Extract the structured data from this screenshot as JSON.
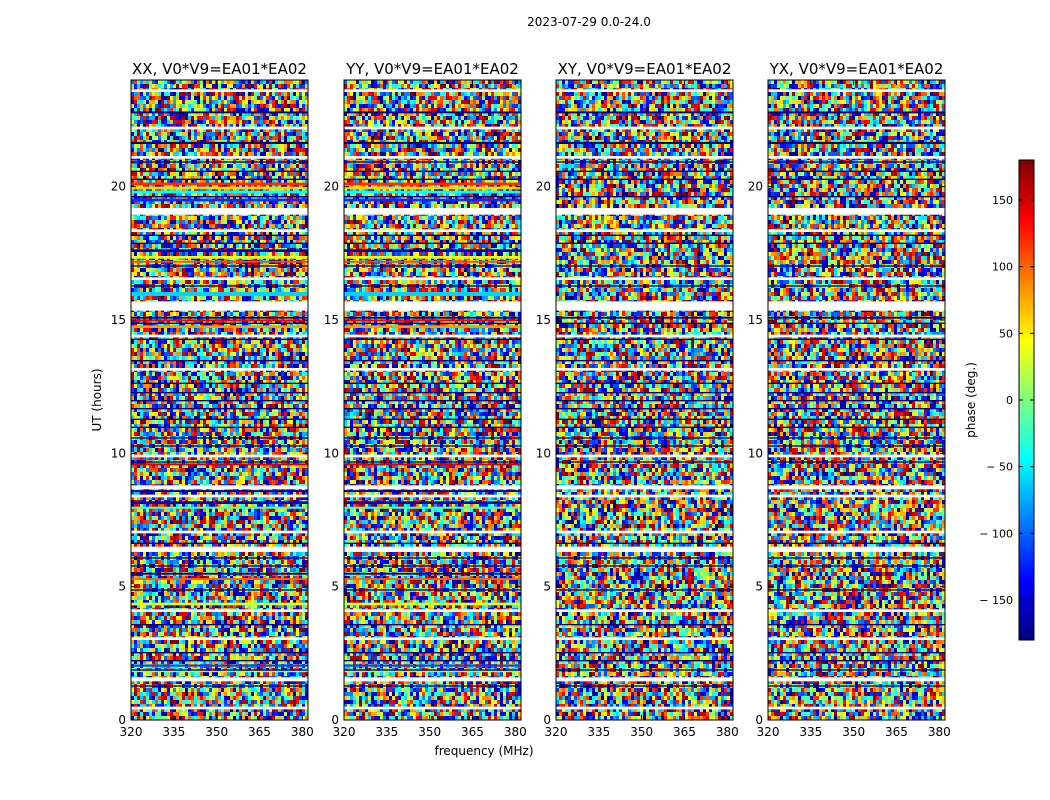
{
  "suptitle": "2023-07-29 0.0-24.0",
  "chart_data": {
    "type": "heatmap",
    "title": "2023-07-29 0.0-24.0",
    "xlabel": "frequency (MHz)",
    "ylabel": "UT (hours)",
    "xlim": [
      320,
      382
    ],
    "ylim": [
      0,
      24
    ],
    "xticks": [
      320,
      335,
      350,
      365,
      380
    ],
    "yticks": [
      0,
      5,
      10,
      15,
      20
    ],
    "grid": false,
    "panels": [
      {
        "title": "XX, V0*V9=EA01*EA02",
        "pol": "XX",
        "coherent": true
      },
      {
        "title": "YY, V0*V9=EA01*EA02",
        "pol": "YY",
        "coherent": true
      },
      {
        "title": "XY, V0*V9=EA01*EA02",
        "pol": "XY",
        "coherent": false
      },
      {
        "title": "YX, V0*V9=EA01*EA02",
        "pol": "YX",
        "coherent": false
      }
    ],
    "flagged_hours": [
      [
        23.55,
        23.65
      ],
      [
        22.15,
        22.25
      ],
      [
        21.05,
        21.15
      ],
      [
        18.95,
        19.2
      ],
      [
        18.3,
        18.4
      ],
      [
        16.5,
        16.6
      ],
      [
        15.35,
        15.7
      ],
      [
        14.35,
        14.45
      ],
      [
        13.1,
        13.2
      ],
      [
        9.85,
        9.95
      ],
      [
        8.35,
        8.45
      ],
      [
        8.65,
        8.8
      ],
      [
        7.0,
        7.1
      ],
      [
        6.3,
        6.5
      ],
      [
        4.05,
        4.15
      ],
      [
        3.0,
        3.1
      ],
      [
        1.45,
        1.6
      ],
      [
        0.4,
        0.5
      ]
    ],
    "dark_hours": [
      [
        22.75,
        22.82
      ],
      [
        21.6,
        21.68
      ],
      [
        20.9,
        20.95
      ],
      [
        20.55,
        20.6
      ],
      [
        20.25,
        20.3
      ],
      [
        19.6,
        19.65
      ],
      [
        18.15,
        18.2
      ],
      [
        17.85,
        17.9
      ],
      [
        17.0,
        17.05
      ],
      [
        16.25,
        16.3
      ],
      [
        15.05,
        15.12
      ],
      [
        14.85,
        14.9
      ],
      [
        14.25,
        14.3
      ],
      [
        13.45,
        13.5
      ],
      [
        12.6,
        12.65
      ],
      [
        12.25,
        12.3
      ],
      [
        11.95,
        12.0
      ],
      [
        11.65,
        11.7
      ],
      [
        11.25,
        11.3
      ],
      [
        10.95,
        11.0
      ],
      [
        10.55,
        10.6
      ],
      [
        10.25,
        10.3
      ],
      [
        9.65,
        9.7
      ],
      [
        6.6,
        6.65
      ],
      [
        6.05,
        6.1
      ],
      [
        5.75,
        5.8
      ],
      [
        4.85,
        4.9
      ],
      [
        3.55,
        3.6
      ],
      [
        2.5,
        2.55
      ],
      [
        2.2,
        2.25
      ],
      [
        1.85,
        1.9
      ],
      [
        1.25,
        1.3
      ]
    ],
    "coherent_stripes": [
      {
        "h0": 20.05,
        "h1": 20.15,
        "phase": 120
      },
      {
        "h0": 19.9,
        "h1": 20.0,
        "phase": 60
      },
      {
        "h0": 19.75,
        "h1": 19.85,
        "phase": -40
      },
      {
        "h0": 19.45,
        "h1": 19.55,
        "phase": -120
      },
      {
        "h0": 17.55,
        "h1": 17.65,
        "phase": -160
      },
      {
        "h0": 17.3,
        "h1": 17.4,
        "phase": 40
      },
      {
        "h0": 17.15,
        "h1": 17.22,
        "phase": 110
      },
      {
        "h0": 15.9,
        "h1": 16.05,
        "phase": -60
      },
      {
        "h0": 14.95,
        "h1": 15.02,
        "phase": 140
      },
      {
        "h0": 14.7,
        "h1": 14.8,
        "phase": 80
      },
      {
        "h0": 9.55,
        "h1": 9.62,
        "phase": 150
      },
      {
        "h0": 8.55,
        "h1": 8.62,
        "phase": -170
      },
      {
        "h0": 8.1,
        "h1": 8.2,
        "phase": -150
      },
      {
        "h0": 7.92,
        "h1": 8.0,
        "phase": -20
      },
      {
        "h0": 5.45,
        "h1": 5.52,
        "phase": -175
      },
      {
        "h0": 5.25,
        "h1": 5.32,
        "phase": 100
      },
      {
        "h0": 4.3,
        "h1": 4.4,
        "phase": 30
      },
      {
        "h0": 2.0,
        "h1": 2.08,
        "phase": -110
      },
      {
        "h0": 1.8,
        "h1": 1.85,
        "phase": 10
      }
    ],
    "colorbar": {
      "label": "phase (deg.)",
      "range": [
        -180,
        180
      ],
      "ticks": [
        150,
        100,
        50,
        0,
        -50,
        -100,
        -150
      ],
      "tick_labels": [
        "150",
        "100",
        "50",
        "0",
        "− 50",
        "− 100",
        "− 150"
      ],
      "colormap": "jet",
      "colors": [
        "#00007f",
        "#0000ff",
        "#007fff",
        "#00ffff",
        "#7fff7f",
        "#ffff00",
        "#ff7f00",
        "#ff0000",
        "#7f0000"
      ]
    }
  }
}
